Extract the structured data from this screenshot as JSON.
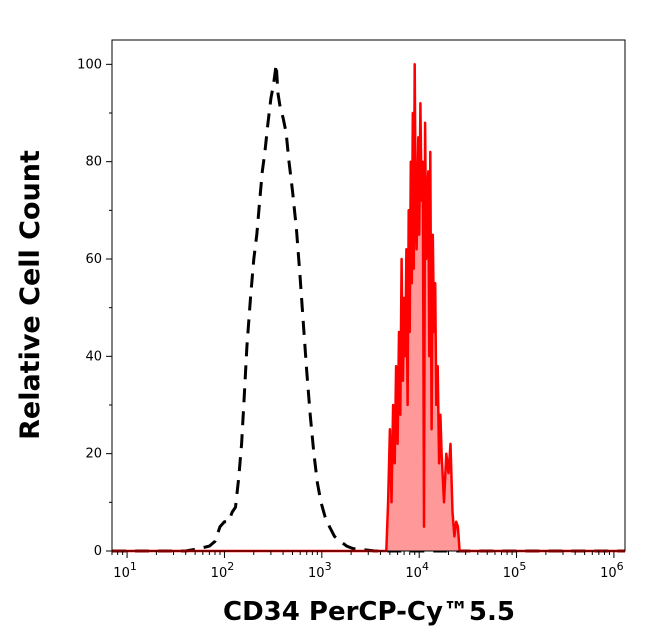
{
  "chart_data": {
    "type": "area",
    "title": "",
    "xlabel": "CD34 PerCP-Cy™5.5",
    "ylabel": "Relative Cell Count",
    "x_scale": "log",
    "xlim": [
      7,
      1300000
    ],
    "ylim": [
      0,
      105
    ],
    "grid": false,
    "y_ticks": [
      0,
      20,
      40,
      60,
      80,
      100
    ],
    "x_ticks": [
      {
        "value": 10,
        "base": "10",
        "exp": "1"
      },
      {
        "value": 100,
        "base": "10",
        "exp": "2"
      },
      {
        "value": 1000,
        "base": "10",
        "exp": "3"
      },
      {
        "value": 10000,
        "base": "10",
        "exp": "4"
      },
      {
        "value": 100000,
        "base": "10",
        "exp": "5"
      },
      {
        "value": 1000000,
        "base": "10",
        "exp": "6"
      }
    ],
    "series": [
      {
        "style": "dashed",
        "color": "#000000",
        "fill": "none",
        "points": [
          [
            7,
            0
          ],
          [
            40,
            0
          ],
          [
            55,
            0.5
          ],
          [
            70,
            1
          ],
          [
            80,
            2
          ],
          [
            90,
            5
          ],
          [
            100,
            6
          ],
          [
            110,
            6
          ],
          [
            120,
            8
          ],
          [
            130,
            9
          ],
          [
            140,
            15
          ],
          [
            150,
            22
          ],
          [
            160,
            32
          ],
          [
            170,
            42
          ],
          [
            185,
            52
          ],
          [
            200,
            60
          ],
          [
            215,
            65
          ],
          [
            230,
            72
          ],
          [
            245,
            78
          ],
          [
            260,
            82
          ],
          [
            280,
            88
          ],
          [
            300,
            93
          ],
          [
            320,
            96
          ],
          [
            340,
            100
          ],
          [
            355,
            94
          ],
          [
            375,
            91
          ],
          [
            400,
            89
          ],
          [
            430,
            86
          ],
          [
            460,
            80
          ],
          [
            500,
            74
          ],
          [
            550,
            66
          ],
          [
            600,
            56
          ],
          [
            650,
            46
          ],
          [
            700,
            37
          ],
          [
            760,
            28
          ],
          [
            830,
            20
          ],
          [
            900,
            14
          ],
          [
            980,
            10
          ],
          [
            1080,
            7
          ],
          [
            1200,
            5
          ],
          [
            1350,
            3
          ],
          [
            1550,
            2
          ],
          [
            1800,
            1
          ],
          [
            2100,
            0.5
          ],
          [
            2600,
            0.3
          ],
          [
            3500,
            0
          ],
          [
            1300000,
            0
          ]
        ]
      },
      {
        "style": "solid",
        "color": "#ff0000",
        "fill": "#ff9999",
        "points": [
          [
            7,
            0
          ],
          [
            4600,
            0
          ],
          [
            4800,
            10
          ],
          [
            5000,
            25
          ],
          [
            5200,
            10
          ],
          [
            5400,
            30
          ],
          [
            5600,
            18
          ],
          [
            5800,
            38
          ],
          [
            6000,
            22
          ],
          [
            6200,
            45
          ],
          [
            6400,
            28
          ],
          [
            6600,
            60
          ],
          [
            6800,
            35
          ],
          [
            7000,
            52
          ],
          [
            7200,
            40
          ],
          [
            7400,
            62
          ],
          [
            7600,
            30
          ],
          [
            7800,
            70
          ],
          [
            8000,
            45
          ],
          [
            8200,
            80
          ],
          [
            8400,
            55
          ],
          [
            8600,
            90
          ],
          [
            8800,
            58
          ],
          [
            9000,
            100
          ],
          [
            9200,
            70
          ],
          [
            9400,
            62
          ],
          [
            9600,
            75
          ],
          [
            9800,
            85
          ],
          [
            10000,
            65
          ],
          [
            10300,
            92
          ],
          [
            10600,
            72
          ],
          [
            10900,
            80
          ],
          [
            11200,
            5
          ],
          [
            11500,
            88
          ],
          [
            11800,
            60
          ],
          [
            12100,
            72
          ],
          [
            12400,
            78
          ],
          [
            12700,
            40
          ],
          [
            13000,
            82
          ],
          [
            13400,
            25
          ],
          [
            13800,
            65
          ],
          [
            14200,
            45
          ],
          [
            14600,
            55
          ],
          [
            15000,
            30
          ],
          [
            15500,
            38
          ],
          [
            16000,
            18
          ],
          [
            16500,
            28
          ],
          [
            17000,
            20
          ],
          [
            17500,
            15
          ],
          [
            18000,
            10
          ],
          [
            19000,
            20
          ],
          [
            20000,
            16
          ],
          [
            21000,
            22
          ],
          [
            22000,
            8
          ],
          [
            23000,
            3
          ],
          [
            24000,
            6
          ],
          [
            25000,
            5
          ],
          [
            26000,
            0
          ],
          [
            1300000,
            0
          ]
        ]
      }
    ]
  }
}
